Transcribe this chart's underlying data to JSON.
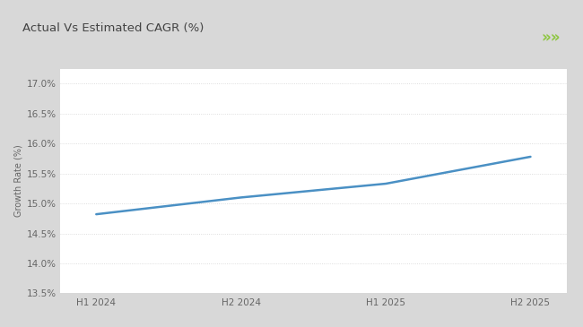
{
  "title": "Actual Vs Estimated CAGR (%)",
  "title_fontsize": 9.5,
  "x_labels": [
    "H1 2024",
    "H2 2024",
    "H1 2025",
    "H2 2025"
  ],
  "x_values": [
    0,
    1,
    2,
    3
  ],
  "y_values": [
    14.82,
    15.1,
    15.33,
    15.78
  ],
  "y_min": 13.5,
  "y_max": 17.25,
  "y_ticks": [
    13.5,
    14.0,
    14.5,
    15.0,
    15.5,
    16.0,
    16.5,
    17.0
  ],
  "line_color": "#4a90c4",
  "line_width": 1.8,
  "ylabel": "Growth Rate (%)",
  "outer_bg_color": "#d8d8d8",
  "card_bg_color": "#ffffff",
  "header_bg_color": "#ffffff",
  "green_bar_color": "#8dc63f",
  "arrow_color": "#8dc63f",
  "grid_color": "#d0d0d0",
  "tick_label_color": "#666666",
  "title_color": "#444444",
  "title_fontweight": "normal",
  "ylabel_fontsize": 7.0,
  "tick_fontsize": 7.5
}
